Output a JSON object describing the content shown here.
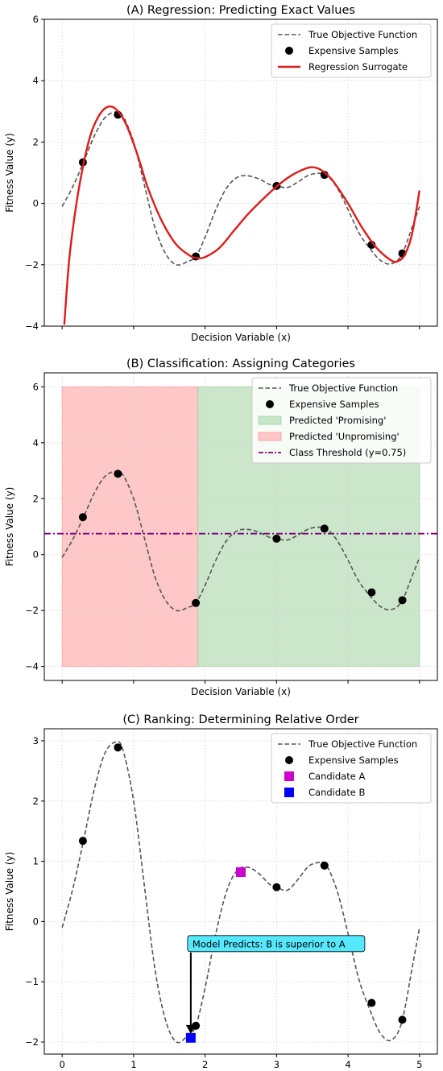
{
  "colors": {
    "true_function": "#555555",
    "samples": "#000000",
    "surrogate": "#dd1c1c",
    "promising_fill": "#a9d6a9",
    "unpromising_fill": "#ffa3a3",
    "threshold": "#800080",
    "candidate_a": "#cc00cc",
    "candidate_b": "#0000ff",
    "annotation_box": "#55e8ff",
    "grid": "#cfcfcf"
  },
  "chart_data": [
    {
      "id": "A",
      "type": "line",
      "title": "(A) Regression: Predicting Exact Values",
      "xlabel": "Decision Variable (x)",
      "ylabel": "Fitness Value (y)",
      "xlim": [
        -0.25,
        5.25
      ],
      "ylim": [
        -4,
        6
      ],
      "x_ticks_labeled": false,
      "x_ticks": [
        0,
        1,
        2,
        3,
        4,
        5
      ],
      "y_ticks": [
        -4,
        -2,
        0,
        2,
        4,
        6
      ],
      "y_tick_labels": [
        "−4",
        "−2",
        "0",
        "2",
        "4",
        "6"
      ],
      "grid": true,
      "legend_position": "top-right",
      "legend": [
        {
          "label": "True Objective Function",
          "style": "dashed-line",
          "color": "#555555"
        },
        {
          "label": "Expensive Samples",
          "style": "circle",
          "color": "#000000"
        },
        {
          "label": "Regression Surrogate",
          "style": "solid-line",
          "color": "#dd1c1c"
        }
      ],
      "series": [
        {
          "name": "True Objective Function",
          "style": "dashed",
          "x": [
            0,
            0.15,
            0.3,
            0.45,
            0.6,
            0.75,
            0.85,
            1.0,
            1.15,
            1.3,
            1.45,
            1.6,
            1.75,
            1.87,
            2.0,
            2.15,
            2.3,
            2.45,
            2.6,
            2.75,
            2.9,
            3.0,
            3.15,
            3.3,
            3.45,
            3.6,
            3.7,
            3.85,
            4.0,
            4.15,
            4.3,
            4.45,
            4.6,
            4.75,
            4.9,
            5.0
          ],
          "y": [
            -0.1,
            0.55,
            1.35,
            2.2,
            2.8,
            2.98,
            2.85,
            2.0,
            0.6,
            -0.8,
            -1.65,
            -2.0,
            -1.9,
            -1.73,
            -1.1,
            -0.2,
            0.5,
            0.85,
            0.9,
            0.8,
            0.62,
            0.57,
            0.52,
            0.7,
            0.92,
            0.98,
            0.93,
            0.5,
            -0.2,
            -0.95,
            -1.45,
            -1.85,
            -1.97,
            -1.68,
            -0.75,
            -0.1
          ]
        },
        {
          "name": "Expensive Samples",
          "style": "markers",
          "x": [
            0.29,
            0.78,
            1.87,
            3.0,
            3.67,
            4.33,
            4.76
          ],
          "y": [
            1.34,
            2.89,
            -1.73,
            0.57,
            0.93,
            -1.35,
            -1.63
          ]
        },
        {
          "name": "Regression Surrogate",
          "style": "solid",
          "x": [
            0.03,
            0.1,
            0.2,
            0.3,
            0.4,
            0.5,
            0.6,
            0.7,
            0.8,
            0.9,
            1.0,
            1.1,
            1.2,
            1.4,
            1.6,
            1.8,
            1.9,
            2.0,
            2.2,
            2.4,
            2.6,
            2.8,
            3.0,
            3.2,
            3.4,
            3.5,
            3.6,
            3.7,
            3.8,
            4.0,
            4.2,
            4.4,
            4.6,
            4.7,
            4.8,
            4.9,
            5.0
          ],
          "y": [
            -3.95,
            -1.8,
            0.0,
            1.3,
            2.25,
            2.8,
            3.1,
            3.15,
            2.95,
            2.55,
            1.95,
            1.25,
            0.5,
            -0.6,
            -1.35,
            -1.72,
            -1.78,
            -1.75,
            -1.45,
            -0.9,
            -0.35,
            0.12,
            0.55,
            0.9,
            1.13,
            1.18,
            1.12,
            0.95,
            0.7,
            0.0,
            -0.8,
            -1.45,
            -1.85,
            -1.88,
            -1.65,
            -0.95,
            0.42
          ]
        }
      ]
    },
    {
      "id": "B",
      "type": "line",
      "title": "(B) Classification: Assigning Categories",
      "xlabel": "Decision Variable (x)",
      "ylabel": "Fitness Value (y)",
      "xlim": [
        -0.25,
        5.25
      ],
      "ylim": [
        -4.5,
        6.5
      ],
      "x_ticks_labeled": false,
      "x_ticks": [
        0,
        1,
        2,
        3,
        4,
        5
      ],
      "y_ticks": [
        -4,
        -2,
        0,
        2,
        4,
        6
      ],
      "y_tick_labels": [
        "−4",
        "−2",
        "0",
        "2",
        "4",
        "6"
      ],
      "grid": true,
      "legend_position": "top-right",
      "legend": [
        {
          "label": "True Objective Function",
          "style": "dashed-line",
          "color": "#555555"
        },
        {
          "label": "Expensive Samples",
          "style": "circle",
          "color": "#000000"
        },
        {
          "label": "Predicted 'Promising'",
          "style": "patch",
          "color": "#a9d6a9"
        },
        {
          "label": "Predicted 'Unpromising'",
          "style": "patch",
          "color": "#ffa3a3"
        },
        {
          "label": "Class Threshold (y=0.75)",
          "style": "dashdot-line",
          "color": "#800080"
        }
      ],
      "regions": [
        {
          "name": "Predicted 'Unpromising'",
          "x_from": 0,
          "x_to": 1.9,
          "y_from": -4,
          "y_to": 6
        },
        {
          "name": "Predicted 'Promising'",
          "x_from": 1.9,
          "x_to": 5,
          "y_from": -4,
          "y_to": 6
        }
      ],
      "threshold": 0.75,
      "series": [
        {
          "name": "True Objective Function",
          "style": "dashed",
          "x": [
            0,
            0.15,
            0.3,
            0.45,
            0.6,
            0.75,
            0.85,
            1.0,
            1.15,
            1.3,
            1.45,
            1.6,
            1.75,
            1.87,
            2.0,
            2.15,
            2.3,
            2.45,
            2.6,
            2.75,
            2.9,
            3.0,
            3.15,
            3.3,
            3.45,
            3.6,
            3.7,
            3.85,
            4.0,
            4.15,
            4.3,
            4.45,
            4.6,
            4.75,
            4.9,
            5.0
          ],
          "y": [
            -0.1,
            0.55,
            1.35,
            2.2,
            2.8,
            2.98,
            2.85,
            2.0,
            0.6,
            -0.8,
            -1.65,
            -2.0,
            -1.9,
            -1.73,
            -1.1,
            -0.2,
            0.5,
            0.85,
            0.9,
            0.8,
            0.62,
            0.57,
            0.52,
            0.7,
            0.92,
            0.98,
            0.93,
            0.5,
            -0.2,
            -0.95,
            -1.45,
            -1.85,
            -1.97,
            -1.68,
            -0.75,
            -0.1
          ]
        },
        {
          "name": "Expensive Samples",
          "style": "markers",
          "x": [
            0.29,
            0.78,
            1.87,
            3.0,
            3.67,
            4.33,
            4.76
          ],
          "y": [
            1.34,
            2.89,
            -1.73,
            0.57,
            0.93,
            -1.35,
            -1.63
          ]
        }
      ]
    },
    {
      "id": "C",
      "type": "line",
      "title": "(C) Ranking: Determining Relative Order",
      "xlabel": "Decision Variable (x)",
      "ylabel": "Fitness Value (y)",
      "xlim": [
        -0.25,
        5.25
      ],
      "ylim": [
        -2.2,
        3.2
      ],
      "x_ticks_labeled": true,
      "x_ticks": [
        0,
        1,
        2,
        3,
        4,
        5
      ],
      "x_tick_labels": [
        "0",
        "1",
        "2",
        "3",
        "4",
        "5"
      ],
      "y_ticks": [
        -2,
        -1,
        0,
        1,
        2,
        3
      ],
      "y_tick_labels": [
        "−2",
        "−1",
        "0",
        "1",
        "2",
        "3"
      ],
      "grid": true,
      "legend_position": "top-right",
      "legend": [
        {
          "label": "True Objective Function",
          "style": "dashed-line",
          "color": "#555555"
        },
        {
          "label": "Expensive Samples",
          "style": "circle",
          "color": "#000000"
        },
        {
          "label": "Candidate A",
          "style": "square",
          "color": "#cc00cc"
        },
        {
          "label": "Candidate B",
          "style": "square",
          "color": "#0000ff"
        }
      ],
      "candidates": [
        {
          "name": "Candidate A",
          "x": 2.5,
          "y": 0.82
        },
        {
          "name": "Candidate B",
          "x": 1.8,
          "y": -1.93
        }
      ],
      "annotation": {
        "text": "Model Predicts: B is superior to A",
        "x": 1.8,
        "y": -0.38,
        "arrow_to_x": 1.8,
        "arrow_to_y": -1.85
      },
      "series": [
        {
          "name": "True Objective Function",
          "style": "dashed",
          "x": [
            0,
            0.15,
            0.3,
            0.45,
            0.6,
            0.75,
            0.85,
            1.0,
            1.15,
            1.3,
            1.45,
            1.6,
            1.75,
            1.87,
            2.0,
            2.15,
            2.3,
            2.45,
            2.6,
            2.75,
            2.9,
            3.0,
            3.15,
            3.3,
            3.45,
            3.6,
            3.7,
            3.85,
            4.0,
            4.15,
            4.3,
            4.45,
            4.6,
            4.75,
            4.9,
            5.0
          ],
          "y": [
            -0.1,
            0.55,
            1.35,
            2.2,
            2.8,
            2.98,
            2.85,
            2.0,
            0.6,
            -0.8,
            -1.65,
            -2.0,
            -1.9,
            -1.73,
            -1.1,
            -0.2,
            0.5,
            0.85,
            0.9,
            0.8,
            0.62,
            0.57,
            0.52,
            0.7,
            0.92,
            0.98,
            0.93,
            0.5,
            -0.2,
            -0.95,
            -1.45,
            -1.85,
            -1.97,
            -1.68,
            -0.75,
            -0.1
          ]
        },
        {
          "name": "Expensive Samples",
          "style": "markers",
          "x": [
            0.29,
            0.78,
            1.87,
            3.0,
            3.67,
            4.33,
            4.76
          ],
          "y": [
            1.34,
            2.89,
            -1.73,
            0.57,
            0.93,
            -1.35,
            -1.63
          ]
        }
      ]
    }
  ]
}
